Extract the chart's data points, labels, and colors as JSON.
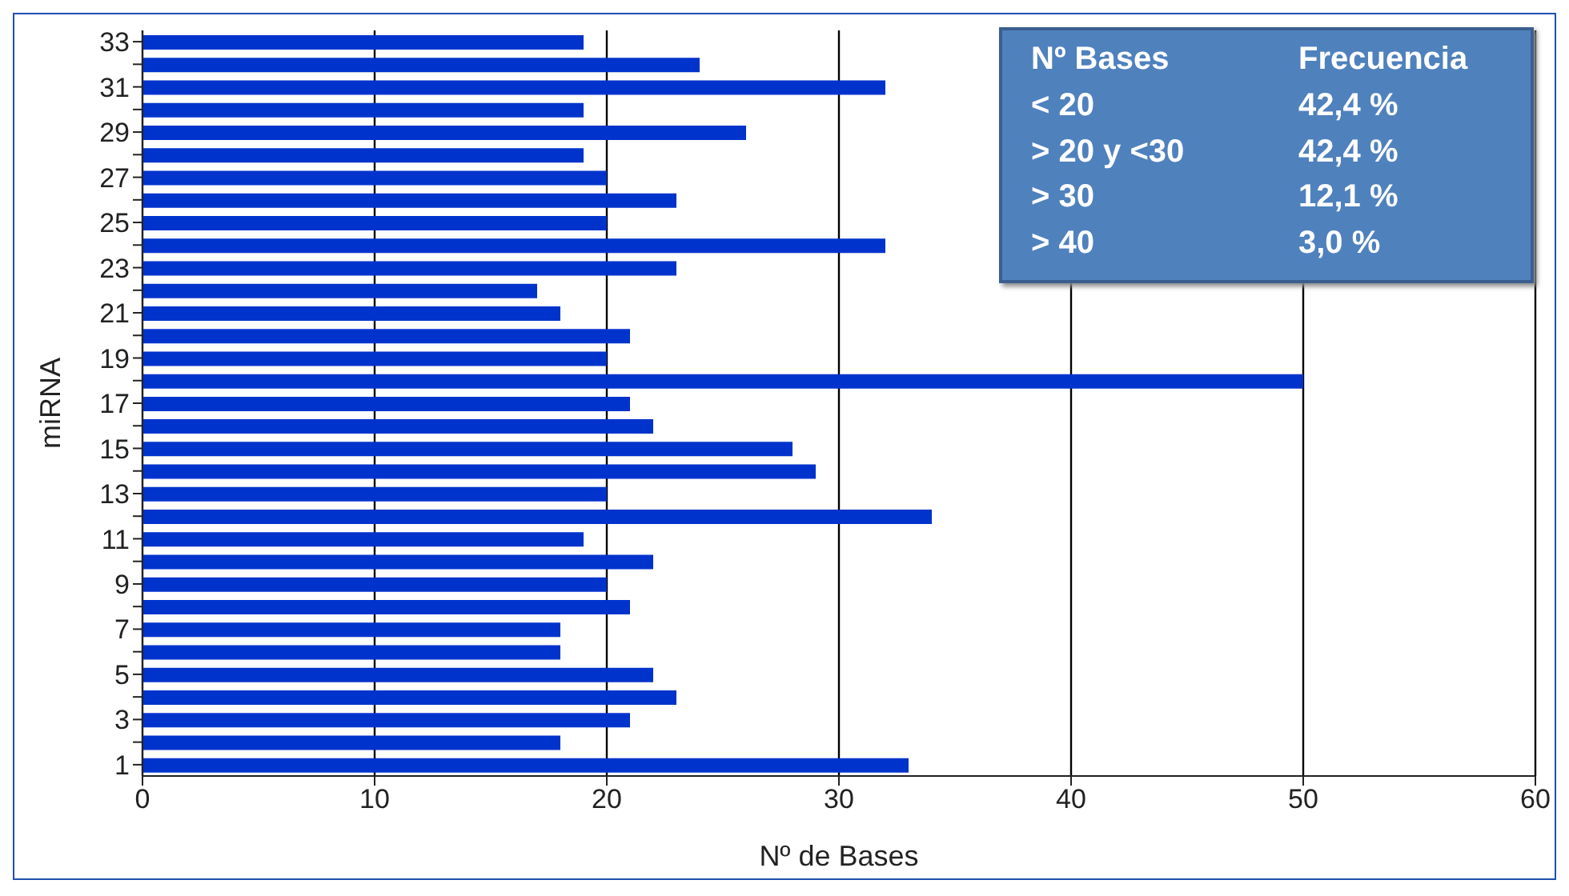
{
  "chart_data": {
    "type": "bar",
    "orientation": "horizontal",
    "xlabel": "Nº de Bases",
    "ylabel": "miRNA",
    "categories": [
      "33",
      null,
      "31",
      null,
      "29",
      null,
      "27",
      null,
      "25",
      null,
      "23",
      null,
      "21",
      null,
      "19",
      null,
      "17",
      null,
      "15",
      null,
      "13",
      null,
      "11",
      null,
      "9",
      null,
      "7",
      null,
      "5",
      null,
      "3",
      null,
      "1"
    ],
    "values": [
      19,
      24,
      32,
      19,
      26,
      19,
      20,
      23,
      20,
      32,
      23,
      17,
      18,
      21,
      20,
      50,
      21,
      22,
      28,
      29,
      20,
      34,
      19,
      22,
      20,
      21,
      18,
      18,
      22,
      23,
      21,
      18,
      33
    ],
    "color": "#0033cc",
    "xlim": [
      0,
      60
    ],
    "xticks": [
      0,
      10,
      20,
      30,
      40,
      50,
      60
    ],
    "grid": "x",
    "legend": false,
    "annotations": [
      "Nº Bases",
      "Frecuencia",
      "< 20",
      "42,4 %",
      "> 20 y <30",
      "42,4 %",
      "> 30",
      "12,1 %",
      "> 40",
      "3,0 %"
    ]
  }
}
